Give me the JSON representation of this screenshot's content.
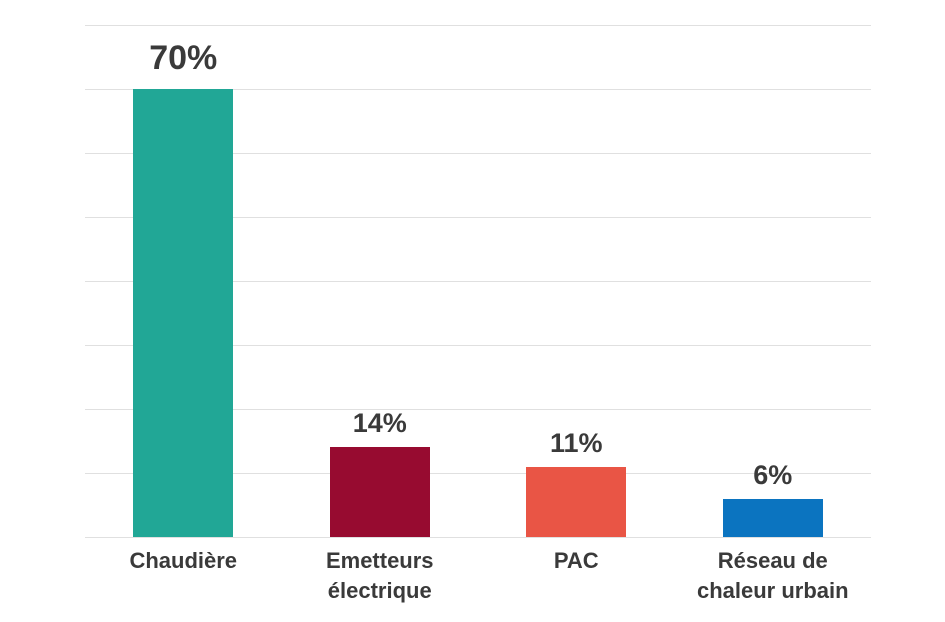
{
  "chart_data": {
    "type": "bar",
    "title": "",
    "xlabel": "",
    "ylabel": "",
    "categories": [
      "Chaudière",
      "Emetteurs électrique",
      "PAC",
      "Réseau de chaleur urbain"
    ],
    "values": [
      70,
      14,
      11,
      6
    ],
    "value_labels": [
      "70%",
      "14%",
      "11%",
      "6%"
    ],
    "category_label_lines": [
      [
        "Chaudière"
      ],
      [
        "Emetteurs",
        "électrique"
      ],
      [
        "PAC"
      ],
      [
        "Réseau de",
        "chaleur urbain"
      ]
    ],
    "bar_colors": [
      "#21a796",
      "#970b30",
      "#e95545",
      "#0b74c0"
    ],
    "emphasized_label_index": 0,
    "ylim": [
      0,
      80
    ],
    "grid_step": 10,
    "grid": true,
    "legend": "none",
    "y_axis_tick_labels_visible": false
  },
  "colors": {
    "background": "#ffffff",
    "grid_line": "#e0e0e0",
    "label_text": "#3a3a3a"
  }
}
